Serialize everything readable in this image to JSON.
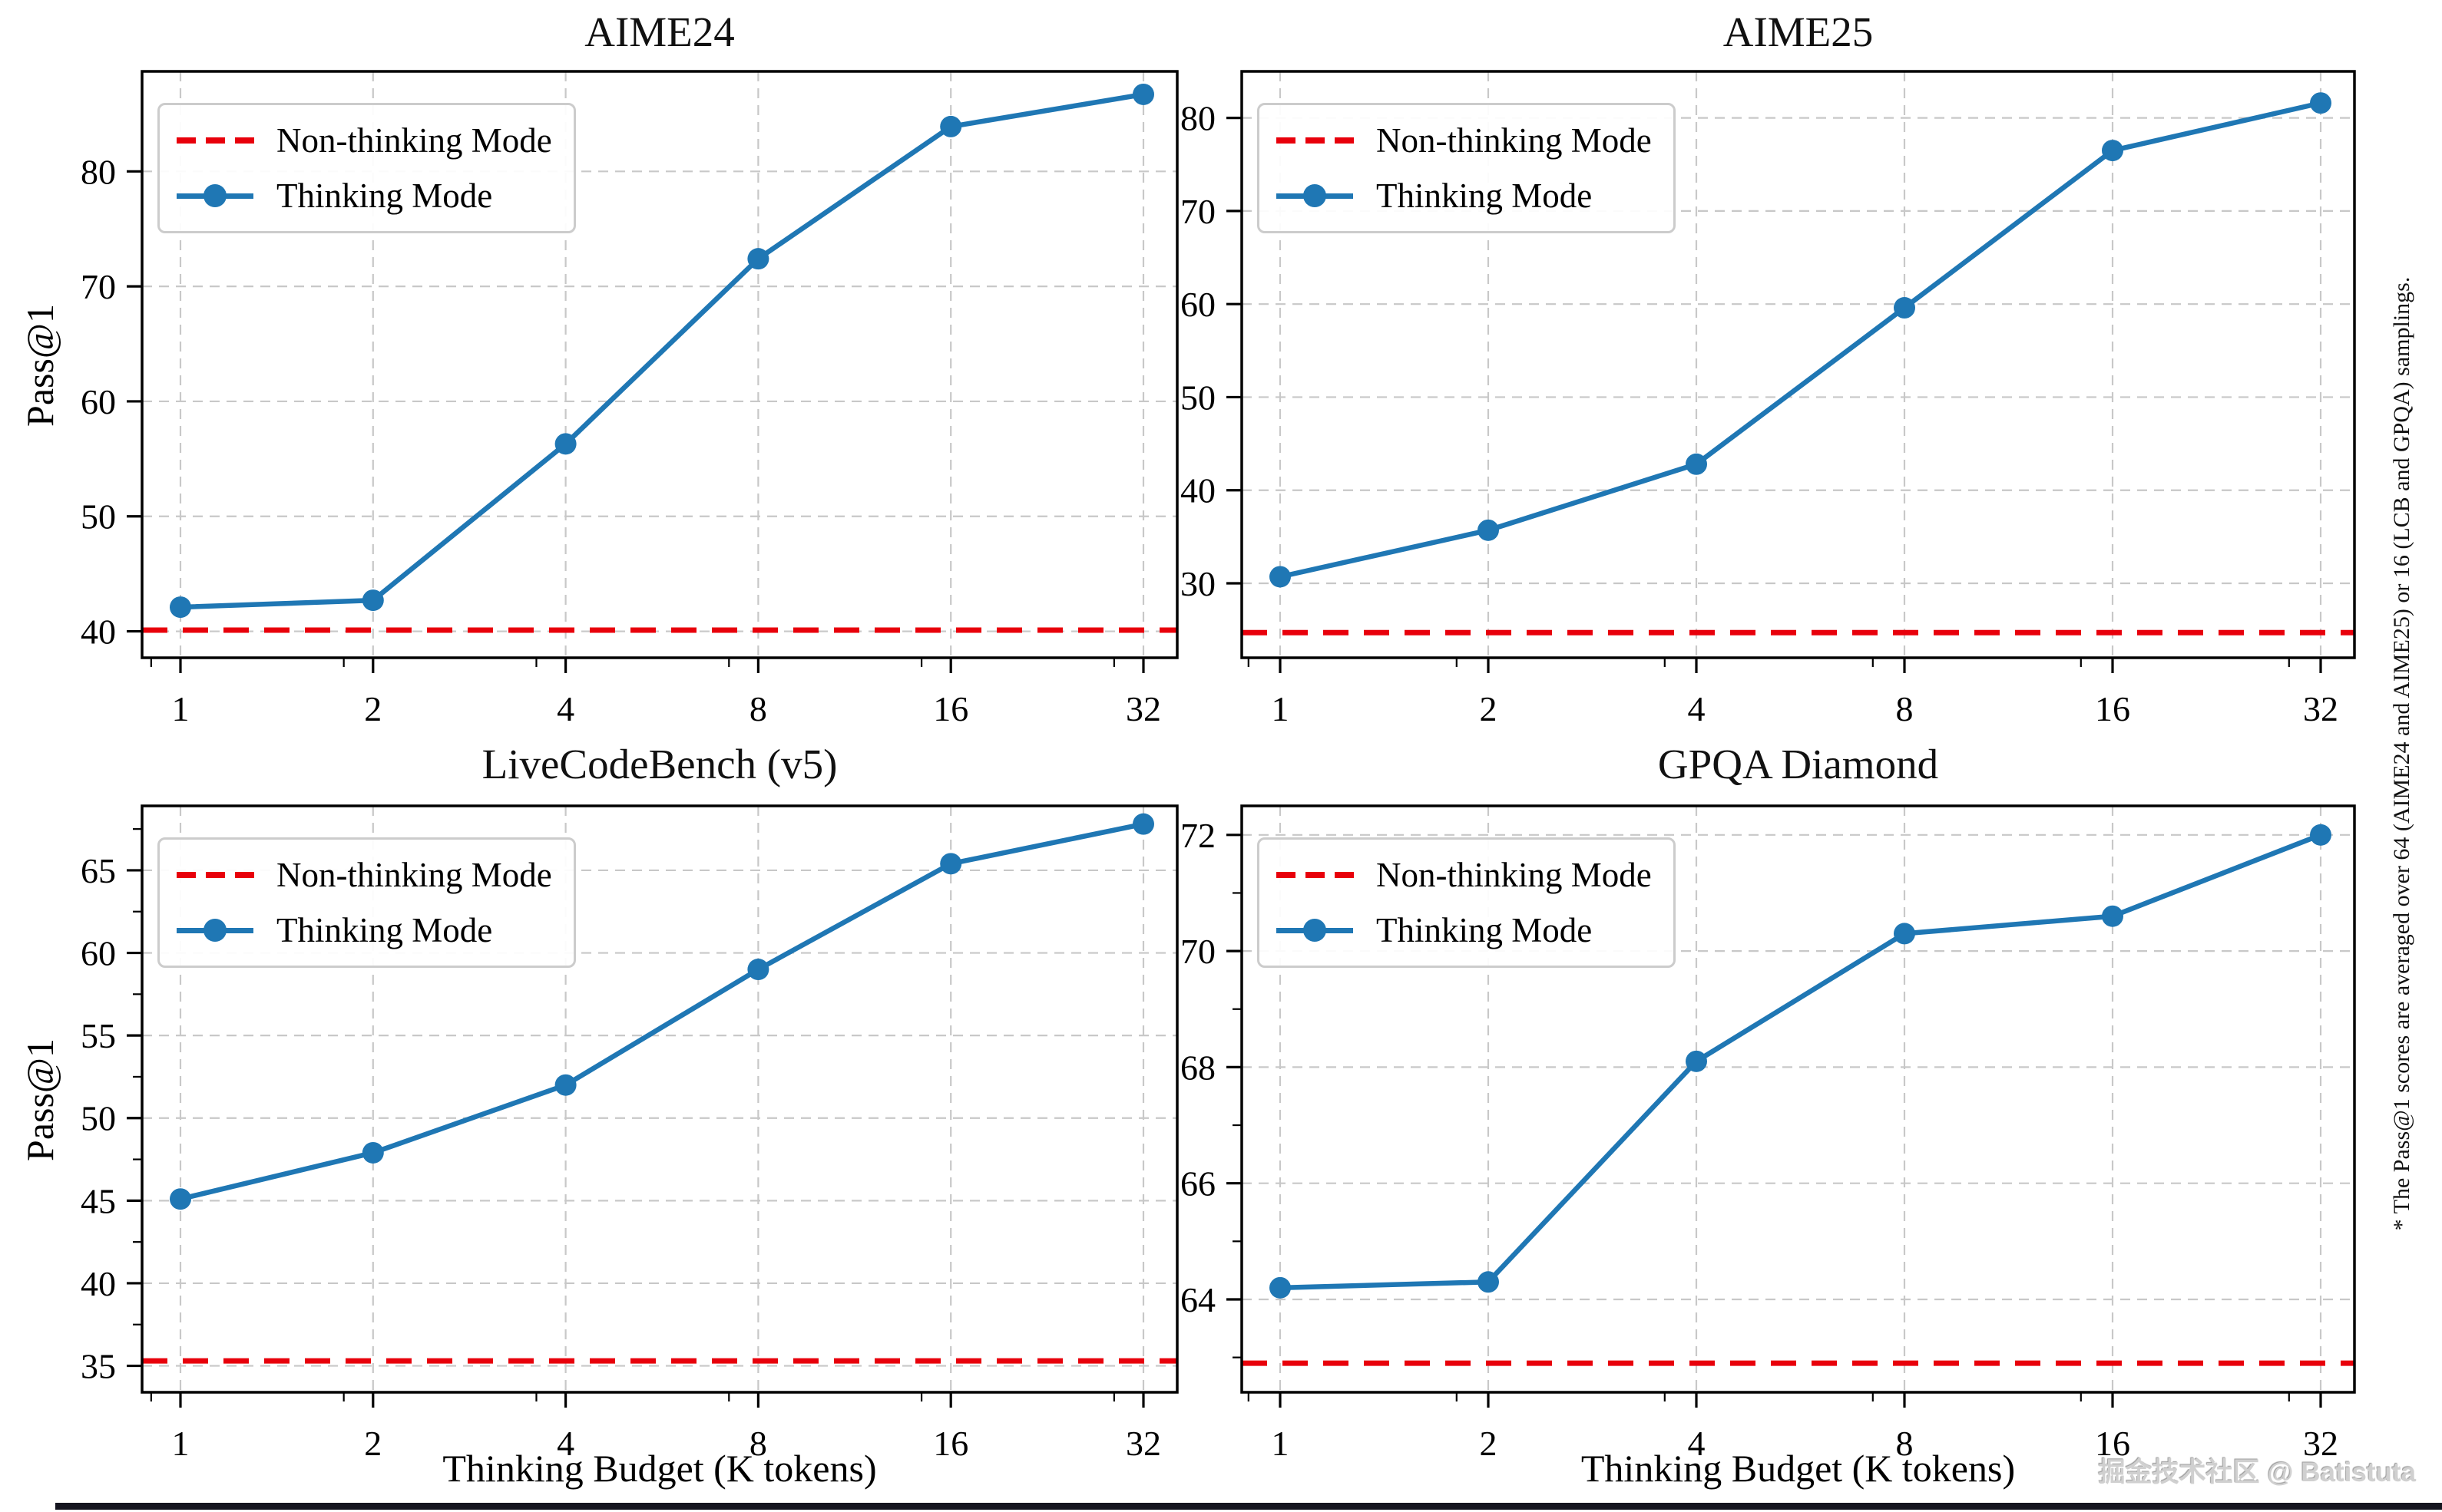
{
  "figure": {
    "ylabel": "Pass@1",
    "xlabel": "Thinking Budget (K tokens)",
    "legend": {
      "non_thinking": "Non-thinking Mode",
      "thinking": "Thinking Mode"
    },
    "side_note": "* The Pass@1 scores are averaged over 64 (AIME24 and AIME25) or 16 (LCB and GPQA) samplings.",
    "watermark": "掘金技术社区 @ Batistuta",
    "colors": {
      "thinking": "#1f77b4",
      "non_thinking": "#e8000b",
      "grid": "#c8c8c8",
      "spine": "#000000"
    }
  },
  "chart_data": [
    {
      "type": "line",
      "title": "AIME24",
      "x_categories": [
        "1",
        "2",
        "4",
        "8",
        "16",
        "32"
      ],
      "xlabel": "Thinking Budget (K tokens)",
      "ylabel": "Pass@1",
      "yticks": [
        40,
        50,
        60,
        70,
        80
      ],
      "yticks_minor": [],
      "ylim": [
        37.7,
        88.7
      ],
      "grid": true,
      "legend_position": "upper left",
      "series": [
        {
          "name": "Non-thinking Mode",
          "style": "dashed",
          "color": "#e8000b",
          "constant": 40.1
        },
        {
          "name": "Thinking Mode",
          "style": "solid-markers",
          "color": "#1f77b4",
          "values": [
            42.1,
            42.7,
            56.3,
            72.4,
            83.9,
            86.7
          ]
        }
      ]
    },
    {
      "type": "line",
      "title": "AIME25",
      "x_categories": [
        "1",
        "2",
        "4",
        "8",
        "16",
        "32"
      ],
      "xlabel": "Thinking Budget (K tokens)",
      "ylabel": "Pass@1",
      "yticks": [
        30,
        40,
        50,
        60,
        70,
        80
      ],
      "yticks_minor": [],
      "ylim": [
        22.0,
        85.0
      ],
      "grid": true,
      "legend_position": "upper left",
      "series": [
        {
          "name": "Non-thinking Mode",
          "style": "dashed",
          "color": "#e8000b",
          "constant": 24.7
        },
        {
          "name": "Thinking Mode",
          "style": "solid-markers",
          "color": "#1f77b4",
          "values": [
            30.7,
            35.7,
            42.8,
            59.6,
            76.5,
            81.6
          ]
        }
      ]
    },
    {
      "type": "line",
      "title": "LiveCodeBench (v5)",
      "x_categories": [
        "1",
        "2",
        "4",
        "8",
        "16",
        "32"
      ],
      "xlabel": "Thinking Budget (K tokens)",
      "ylabel": "Pass@1",
      "yticks": [
        35,
        40,
        45,
        50,
        55,
        60,
        65
      ],
      "yticks_minor": [
        37.5,
        42.5,
        47.5,
        52.5,
        57.5,
        62.5,
        67.5
      ],
      "ylim": [
        33.4,
        68.9
      ],
      "grid": true,
      "legend_position": "upper left",
      "series": [
        {
          "name": "Non-thinking Mode",
          "style": "dashed",
          "color": "#e8000b",
          "constant": 35.3
        },
        {
          "name": "Thinking Mode",
          "style": "solid-markers",
          "color": "#1f77b4",
          "values": [
            45.1,
            47.9,
            52.0,
            59.0,
            65.4,
            67.8
          ]
        }
      ]
    },
    {
      "type": "line",
      "title": "GPQA Diamond",
      "x_categories": [
        "1",
        "2",
        "4",
        "8",
        "16",
        "32"
      ],
      "xlabel": "Thinking Budget (K tokens)",
      "ylabel": "Pass@1",
      "yticks": [
        64,
        66,
        68,
        70,
        72
      ],
      "yticks_minor": [
        63,
        65,
        67,
        69,
        71
      ],
      "ylim": [
        62.4,
        72.5
      ],
      "grid": true,
      "legend_position": "upper left",
      "series": [
        {
          "name": "Non-thinking Mode",
          "style": "dashed",
          "color": "#e8000b",
          "constant": 62.9
        },
        {
          "name": "Thinking Mode",
          "style": "solid-markers",
          "color": "#1f77b4",
          "values": [
            64.2,
            64.3,
            68.1,
            70.3,
            70.6,
            72.0
          ]
        }
      ]
    }
  ]
}
